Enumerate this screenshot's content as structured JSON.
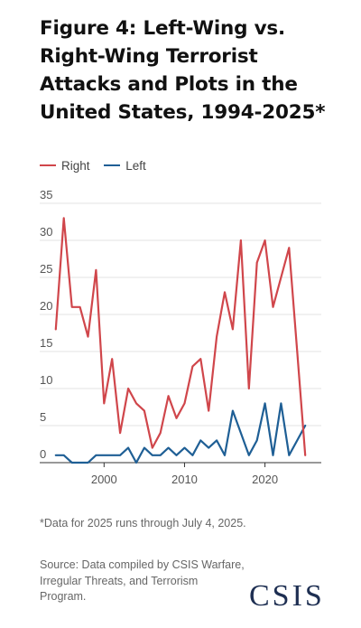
{
  "title": "Figure 4: Left-Wing vs. Right-Wing Terrorist Attacks and Plots in the United States, 1994-2025*",
  "footnote": "*Data for 2025 runs through July 4, 2025.",
  "source": "Source: Data compiled by CSIS Warfare, Irregular Threats, and Terrorism Program.",
  "logo_text": "CSIS",
  "colors": {
    "right": "#d0464b",
    "left": "#1f5f95",
    "grid": "#e3e3e3",
    "axis": "#333333"
  },
  "chart_data": {
    "type": "line",
    "x": [
      1994,
      1995,
      1996,
      1997,
      1998,
      1999,
      2000,
      2001,
      2002,
      2003,
      2004,
      2005,
      2006,
      2007,
      2008,
      2009,
      2010,
      2011,
      2012,
      2013,
      2014,
      2015,
      2016,
      2017,
      2018,
      2019,
      2020,
      2021,
      2022,
      2023,
      2024,
      2025
    ],
    "series": [
      {
        "name": "Right",
        "values": [
          18,
          33,
          21,
          21,
          17,
          26,
          8,
          14,
          4,
          10,
          8,
          7,
          2,
          4,
          9,
          6,
          8,
          13,
          14,
          7,
          17,
          23,
          18,
          30,
          10,
          27,
          30,
          21,
          25,
          29,
          15,
          1
        ]
      },
      {
        "name": "Left",
        "values": [
          1,
          1,
          0,
          0,
          0,
          1,
          1,
          1,
          1,
          2,
          0,
          2,
          1,
          1,
          2,
          1,
          2,
          1,
          3,
          2,
          3,
          1,
          7,
          4,
          1,
          3,
          8,
          1,
          8,
          1,
          3,
          5
        ]
      }
    ],
    "ylim": [
      0,
      35
    ],
    "yticks": [
      0,
      5,
      10,
      15,
      20,
      25,
      30,
      35
    ],
    "xticks": [
      2000,
      2010,
      2020
    ],
    "xlim": [
      1992,
      2027
    ],
    "grid": true,
    "legend_position": "top-left"
  }
}
